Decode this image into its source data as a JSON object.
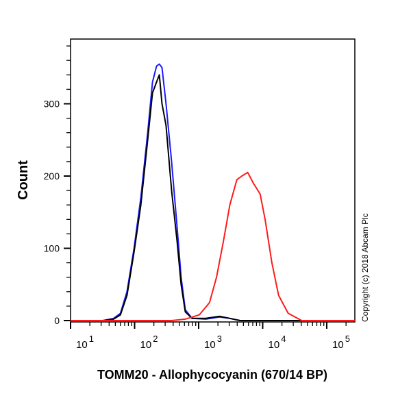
{
  "chart_data": {
    "type": "line",
    "xlabel": "TOMM20 - Allophycocyanin (670/14 BP)",
    "ylabel": "Count",
    "xscale": "log",
    "xlim": [
      10,
      275000
    ],
    "ylim": [
      0,
      390
    ],
    "x_ticks": [
      {
        "base": "10",
        "exp": "1",
        "value": 10
      },
      {
        "base": "10",
        "exp": "2",
        "value": 100
      },
      {
        "base": "10",
        "exp": "3",
        "value": 1000
      },
      {
        "base": "10",
        "exp": "4",
        "value": 10000
      },
      {
        "base": "10",
        "exp": "5",
        "value": 100000
      }
    ],
    "y_ticks": [
      0,
      100,
      200,
      300
    ],
    "grid": false,
    "annotation": "Copyright (c) 2018 Abcam Plc",
    "series": [
      {
        "color": "#1a1aff",
        "points": [
          [
            32,
            0
          ],
          [
            47,
            3
          ],
          [
            60,
            10
          ],
          [
            76,
            40
          ],
          [
            98,
            100
          ],
          [
            125,
            170
          ],
          [
            160,
            260
          ],
          [
            190,
            330
          ],
          [
            220,
            352
          ],
          [
            243,
            355
          ],
          [
            268,
            350
          ],
          [
            310,
            300
          ],
          [
            378,
            220
          ],
          [
            460,
            130
          ],
          [
            533,
            60
          ],
          [
            618,
            15
          ],
          [
            790,
            3
          ],
          [
            1290,
            2
          ],
          [
            2120,
            5
          ],
          [
            3070,
            3
          ],
          [
            4440,
            0
          ]
        ]
      },
      {
        "color": "#000000",
        "points": [
          [
            32,
            0
          ],
          [
            47,
            2
          ],
          [
            60,
            8
          ],
          [
            76,
            35
          ],
          [
            98,
            95
          ],
          [
            125,
            160
          ],
          [
            160,
            250
          ],
          [
            190,
            315
          ],
          [
            220,
            330
          ],
          [
            243,
            340
          ],
          [
            268,
            300
          ],
          [
            310,
            270
          ],
          [
            378,
            180
          ],
          [
            460,
            110
          ],
          [
            533,
            50
          ],
          [
            618,
            12
          ],
          [
            790,
            3
          ],
          [
            1290,
            3
          ],
          [
            2120,
            6
          ],
          [
            3070,
            3
          ],
          [
            4440,
            0
          ]
        ]
      },
      {
        "color": "#ff1a1a",
        "points": [
          [
            378,
            0
          ],
          [
            618,
            2
          ],
          [
            1025,
            8
          ],
          [
            1480,
            25
          ],
          [
            1900,
            60
          ],
          [
            2440,
            110
          ],
          [
            3070,
            160
          ],
          [
            3950,
            195
          ],
          [
            4720,
            200
          ],
          [
            5830,
            205
          ],
          [
            7180,
            190
          ],
          [
            9130,
            175
          ],
          [
            10900,
            140
          ],
          [
            13900,
            80
          ],
          [
            17700,
            35
          ],
          [
            25000,
            10
          ],
          [
            40700,
            0
          ]
        ]
      }
    ]
  }
}
